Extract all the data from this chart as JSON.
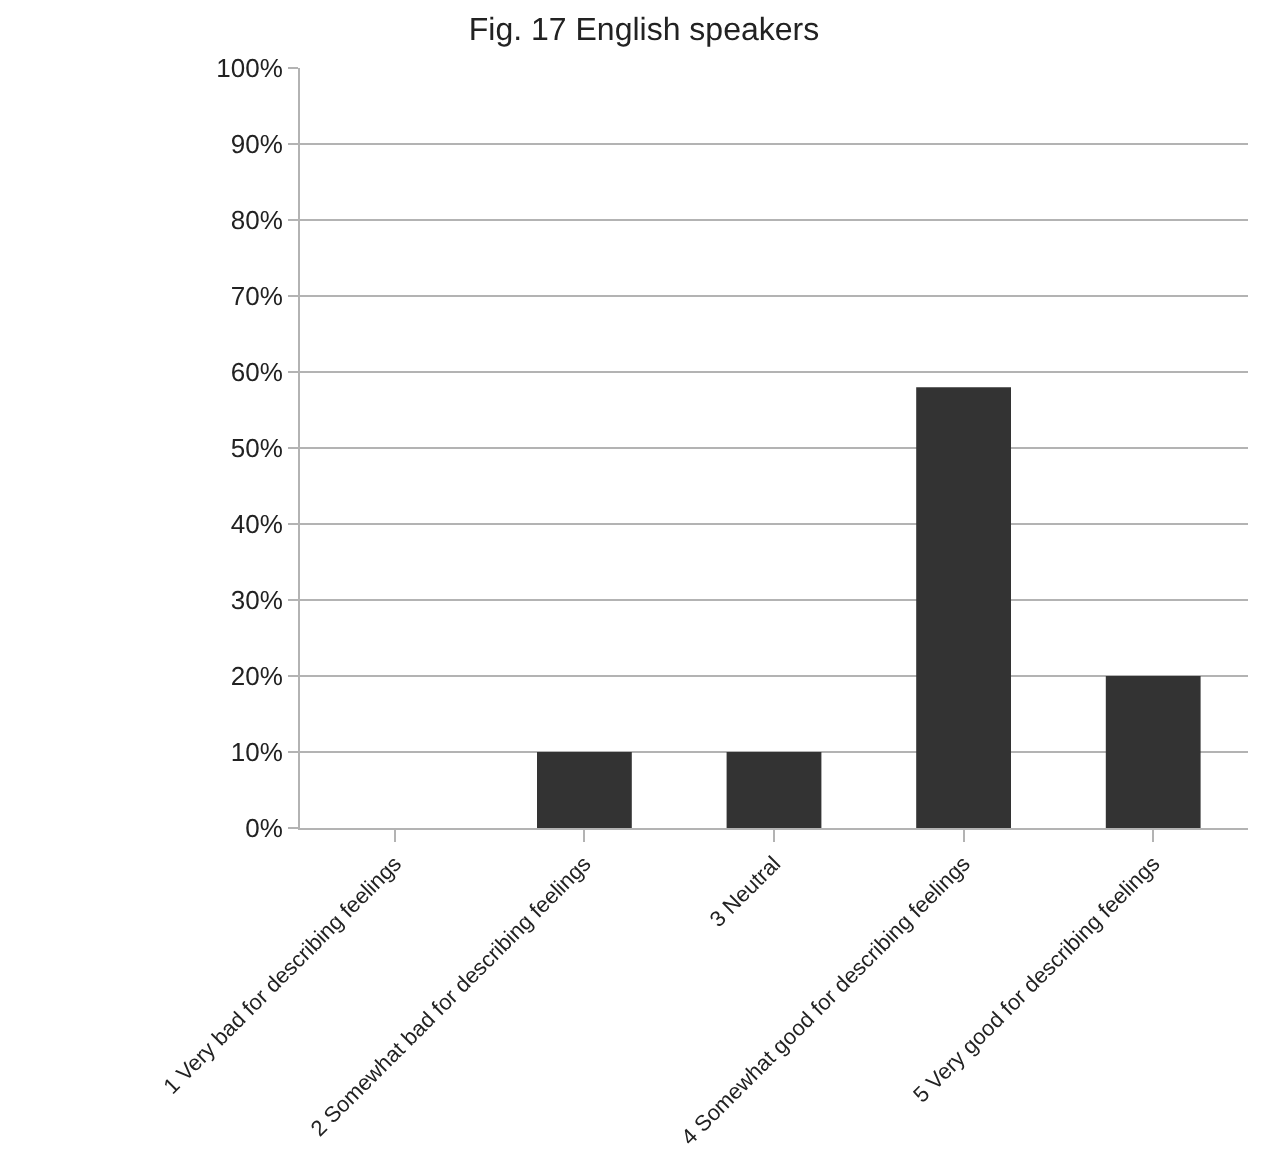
{
  "chart_data": {
    "type": "bar",
    "title": "Fig. 17 English speakers",
    "categories": [
      "1 Very bad for describing feelings",
      "2 Somewhat bad for describing feelings",
      "3 Neutral",
      "4 Somewhat good for describing feelings",
      "5 Very good for describing feelings"
    ],
    "values": [
      0,
      10,
      10,
      58,
      20
    ],
    "color": "#333333",
    "ylim": [
      0,
      100
    ],
    "yticks": [
      {
        "value": 0,
        "label": "0%"
      },
      {
        "value": 10,
        "label": "10%"
      },
      {
        "value": 20,
        "label": "20%"
      },
      {
        "value": 30,
        "label": "30%"
      },
      {
        "value": 40,
        "label": "40%"
      },
      {
        "value": 50,
        "label": "50%"
      },
      {
        "value": 60,
        "label": "60%"
      },
      {
        "value": 70,
        "label": "70%"
      },
      {
        "value": 80,
        "label": "80%"
      },
      {
        "value": 90,
        "label": "90%"
      },
      {
        "value": 100,
        "label": "100%"
      }
    ],
    "grid": "y"
  }
}
